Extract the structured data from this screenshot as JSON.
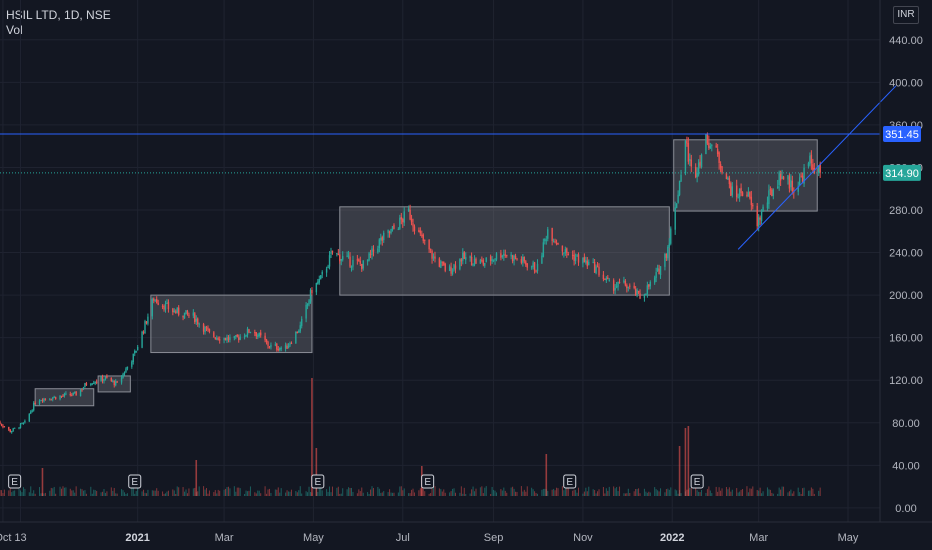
{
  "header": {
    "symbol_line": "HSIL LTD, 1D, NSE",
    "volume_label": "Vol"
  },
  "currency": "INR",
  "colors": {
    "up": "#26a69a",
    "down": "#ef5350",
    "line": "#2962ff",
    "background": "#131722"
  },
  "chart_data": {
    "type": "candlestick",
    "y_ticks": [
      "440.00",
      "400.00",
      "360.00",
      "320.00",
      "280.00",
      "240.00",
      "200.00",
      "160.00",
      "120.00",
      "80.00",
      "40.00",
      "0.00"
    ],
    "y_tick_values": [
      440,
      400,
      360,
      320,
      280,
      240,
      200,
      160,
      120,
      80,
      40,
      0
    ],
    "ylim": [
      -2,
      468
    ],
    "x_ticks": [
      {
        "label": "Oct",
        "bold": false,
        "date": "2020-10-01"
      },
      {
        "label": "13",
        "bold": false,
        "date": "2020-10-13"
      },
      {
        "label": "2021",
        "bold": true,
        "date": "2021-01-01"
      },
      {
        "label": "Mar",
        "bold": false,
        "date": "2021-03-01"
      },
      {
        "label": "May",
        "bold": false,
        "date": "2021-05-01"
      },
      {
        "label": "Jul",
        "bold": false,
        "date": "2021-07-01"
      },
      {
        "label": "Sep",
        "bold": false,
        "date": "2021-09-01"
      },
      {
        "label": "Nov",
        "bold": false,
        "date": "2021-11-01"
      },
      {
        "label": "2022",
        "bold": true,
        "date": "2022-01-01"
      },
      {
        "label": "Mar",
        "bold": false,
        "date": "2022-03-01"
      },
      {
        "label": "May",
        "bold": false,
        "date": "2022-05-01"
      }
    ],
    "price_path": [
      [
        "2020-09-25",
        84
      ],
      [
        "2020-10-06",
        72
      ],
      [
        "2020-10-16",
        80
      ],
      [
        "2020-10-24",
        102
      ],
      [
        "2020-11-05",
        104
      ],
      [
        "2020-11-20",
        107
      ],
      [
        "2020-11-28",
        118
      ],
      [
        "2020-12-10",
        122
      ],
      [
        "2020-12-18",
        116
      ],
      [
        "2020-12-30",
        145
      ],
      [
        "2021-01-05",
        168
      ],
      [
        "2021-01-12",
        197
      ],
      [
        "2021-01-25",
        185
      ],
      [
        "2021-02-08",
        180
      ],
      [
        "2021-02-20",
        162
      ],
      [
        "2021-03-08",
        158
      ],
      [
        "2021-03-20",
        168
      ],
      [
        "2021-04-01",
        152
      ],
      [
        "2021-04-12",
        150
      ],
      [
        "2021-04-22",
        170
      ],
      [
        "2021-04-30",
        205
      ],
      [
        "2021-05-06",
        215
      ],
      [
        "2021-05-14",
        240
      ],
      [
        "2021-05-25",
        232
      ],
      [
        "2021-06-05",
        228
      ],
      [
        "2021-06-15",
        250
      ],
      [
        "2021-06-25",
        262
      ],
      [
        "2021-07-05",
        278
      ],
      [
        "2021-07-12",
        257
      ],
      [
        "2021-07-22",
        235
      ],
      [
        "2021-08-01",
        222
      ],
      [
        "2021-08-10",
        235
      ],
      [
        "2021-08-25",
        230
      ],
      [
        "2021-09-07",
        240
      ],
      [
        "2021-09-20",
        232
      ],
      [
        "2021-10-01",
        225
      ],
      [
        "2021-10-08",
        262
      ],
      [
        "2021-10-20",
        240
      ],
      [
        "2021-11-01",
        232
      ],
      [
        "2021-11-10",
        225
      ],
      [
        "2021-11-20",
        208
      ],
      [
        "2021-11-30",
        210
      ],
      [
        "2021-12-10",
        198
      ],
      [
        "2021-12-20",
        215
      ],
      [
        "2021-12-28",
        240
      ],
      [
        "2022-01-03",
        280
      ],
      [
        "2022-01-10",
        345
      ],
      [
        "2022-01-15",
        310
      ],
      [
        "2022-01-25",
        348
      ],
      [
        "2022-02-03",
        325
      ],
      [
        "2022-02-12",
        292
      ],
      [
        "2022-02-20",
        300
      ],
      [
        "2022-02-28",
        268
      ],
      [
        "2022-03-08",
        292
      ],
      [
        "2022-03-16",
        314
      ],
      [
        "2022-03-26",
        300
      ],
      [
        "2022-04-05",
        325
      ],
      [
        "2022-04-12",
        315
      ]
    ],
    "volume_spikes": [
      {
        "date": "2020-10-28",
        "value": 28
      },
      {
        "date": "2021-02-10",
        "value": 36
      },
      {
        "date": "2021-04-30",
        "value": 118
      },
      {
        "date": "2021-05-03",
        "value": 48
      },
      {
        "date": "2021-07-14",
        "value": 30
      },
      {
        "date": "2021-10-07",
        "value": 42
      },
      {
        "date": "2022-01-06",
        "value": 50
      },
      {
        "date": "2022-01-10",
        "value": 68
      },
      {
        "date": "2022-01-12",
        "value": 70
      }
    ],
    "ranges": [
      {
        "x0": "2020-10-23",
        "x1": "2020-12-02",
        "y0": 96,
        "y1": 112
      },
      {
        "x0": "2020-12-05",
        "x1": "2020-12-27",
        "y0": 109,
        "y1": 124
      },
      {
        "x0": "2021-01-10",
        "x1": "2021-04-30",
        "y0": 146,
        "y1": 200
      },
      {
        "x0": "2021-05-19",
        "x1": "2021-12-30",
        "y0": 200,
        "y1": 283
      },
      {
        "x0": "2022-01-02",
        "x1": "2022-04-10",
        "y0": 279,
        "y1": 346
      }
    ],
    "horizontal_lines": [
      {
        "value": 351.45,
        "label": "351.45",
        "kind": "drawn"
      },
      {
        "value": 314.9,
        "label": "314.90",
        "kind": "last-price"
      }
    ],
    "trendline": {
      "x0": "2022-02-15",
      "y0": 243,
      "x1": "2022-05-01",
      "y1": 350
    },
    "earnings_markers": [
      {
        "label": "E",
        "date": "2020-10-09"
      },
      {
        "label": "E",
        "date": "2020-12-30"
      },
      {
        "label": "E",
        "date": "2021-05-04"
      },
      {
        "label": "E",
        "date": "2021-07-18"
      },
      {
        "label": "E",
        "date": "2021-10-23"
      },
      {
        "label": "E",
        "date": "2022-01-18"
      }
    ]
  }
}
